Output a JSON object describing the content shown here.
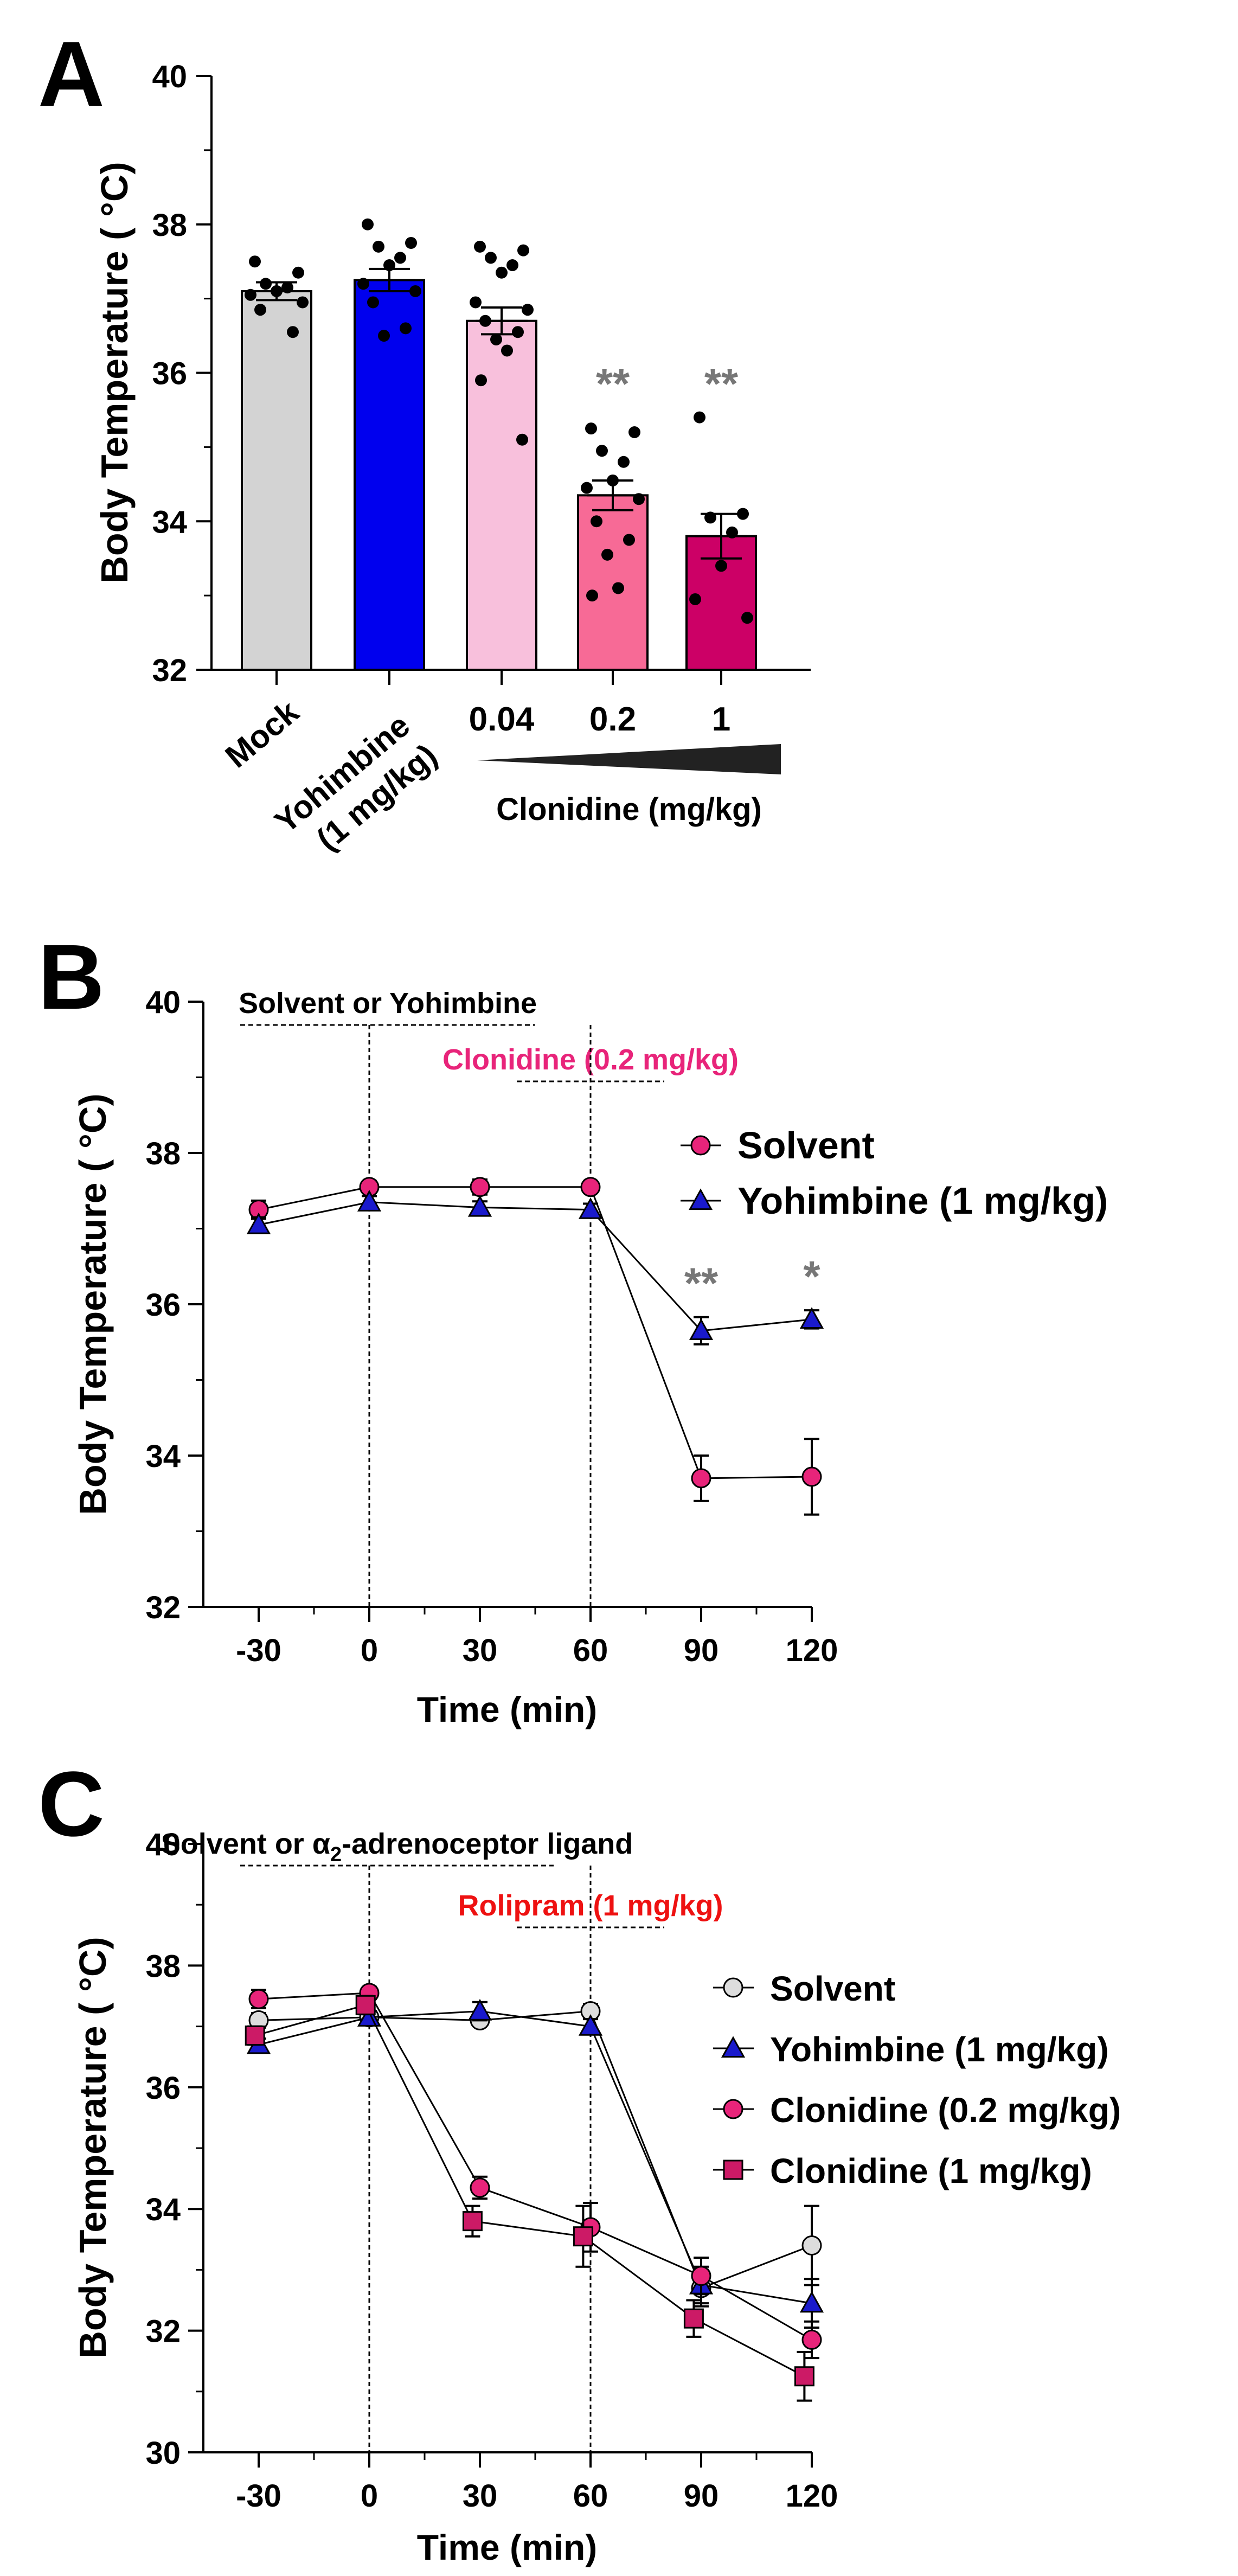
{
  "chart_data": [
    {
      "panel": "A",
      "type": "bar",
      "ylabel": "Body Temperature ( °C)",
      "ylim": [
        32,
        40
      ],
      "yticks": [
        32,
        34,
        36,
        38,
        40
      ],
      "categories": [
        "Mock",
        "Yohimbine (1 mg/kg)",
        "0.04",
        "0.2",
        "1"
      ],
      "category_label_lines": [
        [
          "Mock"
        ],
        [
          "Yohimbine",
          "(1 mg/kg)"
        ],
        [
          "0.04"
        ],
        [
          "0.2"
        ],
        [
          "1"
        ]
      ],
      "values": [
        37.1,
        37.25,
        36.7,
        34.35,
        33.8
      ],
      "sem": [
        0.12,
        0.15,
        0.18,
        0.2,
        0.3
      ],
      "colors": [
        "#d3d3d3",
        "#0000ee",
        "#f8c0dc",
        "#f76a96",
        "#cc0066"
      ],
      "points": [
        [
          37.5,
          37.35,
          37.2,
          37.15,
          37.1,
          37.05,
          36.95,
          36.85,
          36.55
        ],
        [
          38.0,
          37.75,
          37.7,
          37.55,
          37.45,
          37.2,
          37.1,
          36.95,
          36.6,
          36.5
        ],
        [
          37.7,
          37.65,
          37.55,
          37.45,
          37.35,
          36.95,
          36.85,
          36.7,
          36.55,
          36.45,
          36.3,
          35.9,
          35.1
        ],
        [
          35.25,
          35.2,
          34.95,
          34.8,
          34.55,
          34.45,
          34.3,
          34.0,
          33.75,
          33.55,
          33.1,
          33.0
        ],
        [
          35.4,
          34.1,
          34.05,
          33.85,
          33.4,
          32.95,
          32.7
        ]
      ],
      "significance": [
        "",
        "",
        "",
        "**",
        "**"
      ],
      "group_label": "Clonidine (mg/kg)"
    },
    {
      "panel": "B",
      "type": "line",
      "xlabel": "Time (min)",
      "ylabel": "Body Temperature ( °C)",
      "x": [
        -30,
        0,
        30,
        60,
        90,
        120
      ],
      "xlim": [
        -45,
        120
      ],
      "ylim": [
        32,
        40
      ],
      "yticks": [
        32,
        34,
        36,
        38,
        40
      ],
      "series": [
        {
          "name": "Solvent",
          "marker": "circle",
          "color": "#e8247a",
          "x": [
            -30,
            0,
            30,
            60,
            90,
            120
          ],
          "values": [
            37.25,
            37.55,
            37.55,
            37.55,
            33.7,
            33.72
          ],
          "sem": [
            0.12,
            0.08,
            0.1,
            0.08,
            0.3,
            0.5
          ]
        },
        {
          "name": "Yohimbine (1 mg/kg)",
          "marker": "triangle",
          "color": "#1a1acc",
          "x": [
            -30,
            0,
            30,
            60,
            90,
            120
          ],
          "values": [
            37.05,
            37.35,
            37.28,
            37.25,
            35.65,
            35.8
          ],
          "sem": [
            0.1,
            0.08,
            0.08,
            0.08,
            0.18,
            0.12
          ]
        }
      ],
      "significance": [
        {
          "x": 90,
          "label": "**"
        },
        {
          "x": 120,
          "label": "*"
        }
      ],
      "annotations": [
        {
          "text": "Solvent or Yohimbine",
          "color": "#000000",
          "x_start": -35,
          "x_end": 45
        },
        {
          "text": "Clonidine (0.2 mg/kg)",
          "color": "#e8247a",
          "x_start": 40,
          "x_end": 80
        }
      ],
      "vlines": [
        0,
        60
      ]
    },
    {
      "panel": "C",
      "type": "line",
      "xlabel": "Time (min)",
      "ylabel": "Body Temperature ( °C)",
      "x": [
        -30,
        0,
        30,
        60,
        90,
        120
      ],
      "xlim": [
        -45,
        120
      ],
      "ylim": [
        30,
        40
      ],
      "yticks": [
        30,
        32,
        34,
        36,
        38,
        40
      ],
      "series": [
        {
          "name": "Solvent",
          "marker": "circle",
          "color": "#dddddd",
          "x": [
            -30,
            0,
            30,
            60,
            90,
            120
          ],
          "values": [
            37.1,
            37.15,
            37.1,
            37.25,
            32.7,
            33.4
          ],
          "sem": [
            0.12,
            0.1,
            0.08,
            0.12,
            0.3,
            0.65
          ]
        },
        {
          "name": "Yohimbine (1 mg/kg)",
          "marker": "triangle",
          "color": "#1a1acc",
          "x": [
            -30,
            0,
            30,
            60,
            90,
            120
          ],
          "values": [
            36.7,
            37.15,
            37.25,
            37.0,
            32.75,
            32.45
          ],
          "sem": [
            0.1,
            0.1,
            0.15,
            0.12,
            0.3,
            0.4
          ]
        },
        {
          "name": "Clonidine (0.2 mg/kg)",
          "marker": "circle",
          "color": "#e8247a",
          "x": [
            -30,
            0,
            30,
            60,
            90,
            120
          ],
          "values": [
            37.45,
            37.55,
            34.35,
            33.7,
            32.9,
            31.85
          ],
          "sem": [
            0.15,
            0.1,
            0.18,
            0.4,
            0.3,
            0.3
          ]
        },
        {
          "name": "Clonidine (1 mg/kg)",
          "marker": "square",
          "color": "#cc1a66",
          "x": [
            -31,
            -1,
            28,
            58,
            88,
            118
          ],
          "values": [
            36.85,
            37.35,
            33.8,
            33.55,
            32.2,
            31.25
          ],
          "sem": [
            0.15,
            0.15,
            0.25,
            0.5,
            0.3,
            0.4
          ]
        }
      ],
      "annotations": [
        {
          "text": "Solvent or α2-adrenoceptor ligand",
          "color": "#000000",
          "x_start": -35,
          "x_end": 50
        },
        {
          "text": "Rolipram (1 mg/kg)",
          "color": "#ee1111",
          "x_start": 40,
          "x_end": 80
        }
      ],
      "vlines": [
        0,
        60
      ]
    }
  ]
}
